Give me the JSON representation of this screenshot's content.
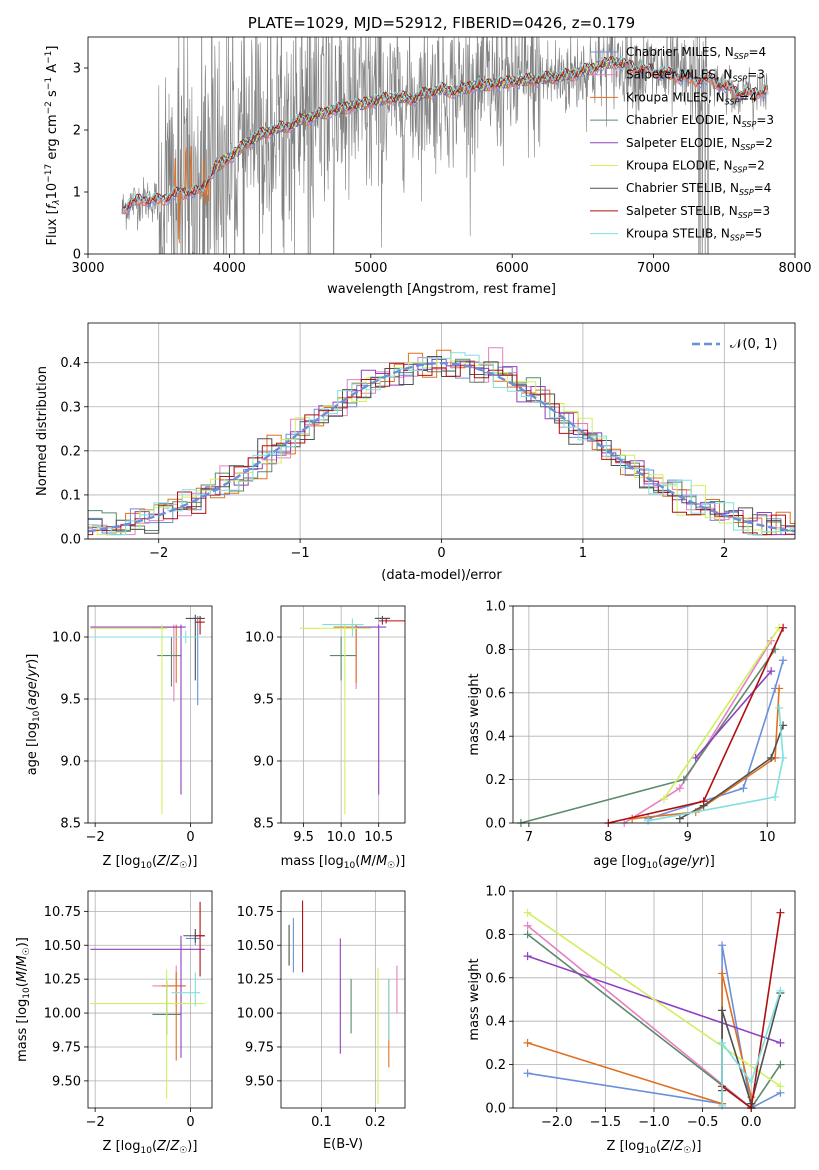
{
  "chart_data": [
    {
      "id": "spectrum",
      "type": "line",
      "title": "PLATE=1029, MJD=52912, FIBERID=0426, z=0.179",
      "xlabel": "wavelength [Angstrom, rest frame]",
      "ylabel": "Flux [f_λ 10^-17 erg cm^-2 s^-1 A^-1]",
      "xlim": [
        3000,
        8000
      ],
      "ylim": [
        0,
        3.5
      ],
      "xticks": [
        "3000",
        "4000",
        "5000",
        "6000",
        "7000",
        "8000"
      ],
      "yticks": [
        "0",
        "1",
        "2",
        "3"
      ],
      "legend_position": "top-right",
      "data_series": {
        "name": "",
        "color": "#808080"
      },
      "model_profile": {
        "x": [
          3240,
          3300,
          3400,
          3500,
          3600,
          3700,
          3800,
          3900,
          4000,
          4100,
          4200,
          4300,
          4400,
          4500,
          4600,
          4700,
          4800,
          4900,
          5000,
          5100,
          5200,
          5300,
          5400,
          5500,
          5600,
          5700,
          5800,
          5900,
          6000,
          6100,
          6200,
          6300,
          6400,
          6500,
          6600,
          6700,
          6800,
          6900,
          7000,
          7100,
          7200,
          7300,
          7400,
          7500,
          7600,
          7700,
          7810
        ],
        "y": [
          0.7,
          0.82,
          0.88,
          0.86,
          0.95,
          1.0,
          1.0,
          1.4,
          1.55,
          1.75,
          1.9,
          2.0,
          2.05,
          2.15,
          2.22,
          2.3,
          2.35,
          2.4,
          2.45,
          2.5,
          2.52,
          2.5,
          2.6,
          2.65,
          2.62,
          2.7,
          2.72,
          2.75,
          2.78,
          2.8,
          2.82,
          2.85,
          2.88,
          2.95,
          3.02,
          3.1,
          3.05,
          2.98,
          2.95,
          2.9,
          2.85,
          2.8,
          2.82,
          2.7,
          2.6,
          2.58,
          2.65
        ]
      },
      "series": [
        {
          "name": "Chabrier MILES, N_SSP=4",
          "label_main": "Chabrier MILES, N",
          "label_sub": "SSP",
          "label_end": "=4",
          "color": "#6a8fdb",
          "xmin": 3250,
          "xmax": 7800
        },
        {
          "name": "Salpeter MILES, N_SSP=3",
          "label_main": "Salpeter MILES, N",
          "label_sub": "SSP",
          "label_end": "=3",
          "color": "#e680c0",
          "xmin": 3250,
          "xmax": 7800
        },
        {
          "name": "Kroupa MILES, N_SSP=4",
          "label_main": "Kroupa MILES, N",
          "label_sub": "SSP",
          "label_end": "=4",
          "color": "#e07020",
          "xmin": 3250,
          "xmax": 7800
        },
        {
          "name": "Chabrier ELODIE, N_SSP=3",
          "label_main": "Chabrier ELODIE, N",
          "label_sub": "SSP",
          "label_end": "=3",
          "color": "#5a8a6a",
          "xmin": 3900,
          "xmax": 6800
        },
        {
          "name": "Salpeter ELODIE, N_SSP=2",
          "label_main": "Salpeter ELODIE, N",
          "label_sub": "SSP",
          "label_end": "=2",
          "color": "#9040c0",
          "xmin": 3900,
          "xmax": 6800
        },
        {
          "name": "Kroupa ELODIE, N_SSP=2",
          "label_main": "Kroupa ELODIE, N",
          "label_sub": "SSP",
          "label_end": "=2",
          "color": "#d0f060",
          "xmin": 3900,
          "xmax": 6800
        },
        {
          "name": "Chabrier STELIB, N_SSP=4",
          "label_main": "Chabrier STELIB, N",
          "label_sub": "SSP",
          "label_end": "=4",
          "color": "#505050",
          "xmin": 3250,
          "xmax": 7800
        },
        {
          "name": "Salpeter STELIB, N_SSP=3",
          "label_main": "Salpeter STELIB, N",
          "label_sub": "SSP",
          "label_end": "=3",
          "color": "#b01010",
          "xmin": 3250,
          "xmax": 7800
        },
        {
          "name": "Kroupa STELIB, N_SSP=5",
          "label_main": "Kroupa STELIB, N",
          "label_sub": "SSP",
          "label_end": "=5",
          "color": "#80e0e0",
          "xmin": 3250,
          "xmax": 7800
        }
      ]
    },
    {
      "id": "residuals",
      "type": "line",
      "xlabel": "(data-model)/error",
      "ylabel": "Normed distribution",
      "xlim": [
        -2.5,
        2.5
      ],
      "ylim": [
        0,
        0.49
      ],
      "xticks": [
        "−2",
        "−1",
        "0",
        "1",
        "2"
      ],
      "yticks": [
        "0.0",
        "0.1",
        "0.2",
        "0.3",
        "0.4"
      ],
      "grid": true,
      "legend_position": "top-right",
      "reference_curve": {
        "name": "𝒩(0, 1)",
        "color": "#6a8fdb",
        "style": "dashed"
      },
      "bin_width": 0.1,
      "series_colors": [
        "#6a8fdb",
        "#e680c0",
        "#e07020",
        "#5a8a6a",
        "#9040c0",
        "#d0f060",
        "#505050",
        "#b01010",
        "#80e0e0"
      ]
    },
    {
      "id": "age_vs_Z",
      "type": "scatter",
      "xlabel": "Z [log10(Z/Z☉)]",
      "ylabel": "age [log10(age/yr)]",
      "xlim": [
        -2.15,
        0.45
      ],
      "ylim": [
        8.5,
        10.25
      ],
      "xticks": [
        "−2",
        "0"
      ],
      "yticks": [
        "8.5",
        "9.0",
        "9.5",
        "10.0"
      ],
      "grid": true,
      "points": [
        {
          "x": 0.15,
          "y": 10.15,
          "xerr": [
            0.1,
            0.1
          ],
          "yerr": [
            0.7,
            0.02
          ],
          "color": "#6a8fdb"
        },
        {
          "x": -0.35,
          "y": 10.08,
          "xerr": [
            0.5,
            0.2
          ],
          "yerr": [
            0.6,
            0.02
          ],
          "color": "#e680c0"
        },
        {
          "x": -0.3,
          "y": 10.08,
          "xerr": [
            0.5,
            0.1
          ],
          "yerr": [
            0.45,
            0.02
          ],
          "color": "#e07020"
        },
        {
          "x": -0.4,
          "y": 9.85,
          "xerr": [
            0.3,
            0.2
          ],
          "yerr": [
            0.25,
            0.15
          ],
          "color": "#5a8a6a"
        },
        {
          "x": -0.2,
          "y": 10.08,
          "xerr": [
            1.9,
            0.1
          ],
          "yerr": [
            1.35,
            0.02
          ],
          "color": "#9040c0"
        },
        {
          "x": -0.6,
          "y": 10.07,
          "xerr": [
            1.5,
            0.1
          ],
          "yerr": [
            1.5,
            0.03
          ],
          "color": "#d0f060"
        },
        {
          "x": 0.1,
          "y": 10.15,
          "xerr": [
            0.2,
            0.2
          ],
          "yerr": [
            0.5,
            0.03
          ],
          "color": "#505050"
        },
        {
          "x": 0.2,
          "y": 10.12,
          "xerr": [
            0.1,
            0.1
          ],
          "yerr": [
            0.1,
            0.05
          ],
          "color": "#b01010"
        },
        {
          "x": -0.1,
          "y": 10.0,
          "xerr": [
            2.0,
            0.4
          ],
          "yerr": [
            0.05,
            0.05
          ],
          "color": "#80e0e0"
        }
      ]
    },
    {
      "id": "age_vs_mass",
      "type": "scatter",
      "xlabel": "mass [log10(M/M☉)]",
      "ylabel": "",
      "xlim": [
        9.2,
        10.85
      ],
      "ylim": [
        8.5,
        10.25
      ],
      "xticks": [
        "9.5",
        "10.0",
        "10.5"
      ],
      "yticks": [
        "8.5",
        "9.0",
        "9.5",
        "10.0"
      ],
      "grid": true,
      "points": [
        {
          "x": 10.55,
          "y": 10.15,
          "xerr": [
            0.1,
            0.1
          ],
          "yerr": [
            0.05,
            0.02
          ],
          "color": "#6a8fdb"
        },
        {
          "x": 10.2,
          "y": 10.08,
          "xerr": [
            0.3,
            0.2
          ],
          "yerr": [
            0.5,
            0.02
          ],
          "color": "#e680c0"
        },
        {
          "x": 10.2,
          "y": 10.08,
          "xerr": [
            0.3,
            0.2
          ],
          "yerr": [
            0.45,
            0.02
          ],
          "color": "#e07020"
        },
        {
          "x": 10.0,
          "y": 9.85,
          "xerr": [
            0.15,
            0.2
          ],
          "yerr": [
            0.2,
            0.15
          ],
          "color": "#5a8a6a"
        },
        {
          "x": 10.5,
          "y": 10.08,
          "xerr": [
            0.3,
            0.1
          ],
          "yerr": [
            1.35,
            0.02
          ],
          "color": "#9040c0"
        },
        {
          "x": 10.05,
          "y": 10.07,
          "xerr": [
            0.6,
            0.35
          ],
          "yerr": [
            1.5,
            0.03
          ],
          "color": "#d0f060"
        },
        {
          "x": 10.55,
          "y": 10.15,
          "xerr": [
            0.1,
            0.1
          ],
          "yerr": [
            0.05,
            0.02
          ],
          "color": "#505050"
        },
        {
          "x": 10.6,
          "y": 10.13,
          "xerr": [
            0.1,
            0.25
          ],
          "yerr": [
            0.02,
            0.02
          ],
          "color": "#b01010"
        },
        {
          "x": 10.15,
          "y": 10.1,
          "xerr": [
            0.4,
            0.15
          ],
          "yerr": [
            0.1,
            0.05
          ],
          "color": "#80e0e0"
        }
      ]
    },
    {
      "id": "weight_vs_age",
      "type": "line",
      "xlabel": "age [log10(age/yr)]",
      "ylabel": "mass weight",
      "xlim": [
        6.8,
        10.35
      ],
      "ylim": [
        0,
        1
      ],
      "xticks": [
        "7",
        "8",
        "9",
        "10"
      ],
      "yticks": [
        "0.0",
        "0.2",
        "0.4",
        "0.6",
        "0.8",
        "1.0"
      ],
      "grid": true,
      "series": [
        {
          "color": "#6a8fdb",
          "x": [
            8.5,
            9.7,
            10.1,
            10.2
          ],
          "y": [
            0.02,
            0.16,
            0.62,
            0.75
          ]
        },
        {
          "color": "#e680c0",
          "x": [
            8.2,
            8.9,
            10.05
          ],
          "y": [
            0.0,
            0.16,
            0.84
          ]
        },
        {
          "color": "#e07020",
          "x": [
            8.3,
            9.1,
            10.1,
            10.15
          ],
          "y": [
            0.02,
            0.05,
            0.3,
            0.62
          ]
        },
        {
          "color": "#5a8a6a",
          "x": [
            6.9,
            8.95,
            10.1
          ],
          "y": [
            0.0,
            0.2,
            0.8
          ]
        },
        {
          "color": "#9040c0",
          "x": [
            9.1,
            10.05
          ],
          "y": [
            0.3,
            0.7
          ]
        },
        {
          "color": "#d0f060",
          "x": [
            8.7,
            10.15
          ],
          "y": [
            0.11,
            0.9
          ]
        },
        {
          "color": "#505050",
          "x": [
            8.9,
            9.2,
            10.05,
            10.2
          ],
          "y": [
            0.02,
            0.08,
            0.3,
            0.45
          ]
        },
        {
          "color": "#b01010",
          "x": [
            8.0,
            9.2,
            10.2
          ],
          "y": [
            0.0,
            0.1,
            0.9
          ]
        },
        {
          "color": "#80e0e0",
          "x": [
            8.5,
            10.1,
            10.2,
            10.15
          ],
          "y": [
            0.01,
            0.12,
            0.3,
            0.53
          ]
        }
      ]
    },
    {
      "id": "mass_vs_Z",
      "type": "scatter",
      "xlabel": "Z [log10(Z/Z☉)]",
      "ylabel": "mass [log10(M/M☉)]",
      "xlim": [
        -2.15,
        0.45
      ],
      "ylim": [
        9.3,
        10.9
      ],
      "xticks": [
        "−2",
        "0"
      ],
      "yticks": [
        "9.50",
        "9.75",
        "10.00",
        "10.25",
        "10.50",
        "10.75"
      ],
      "grid": true,
      "points": [
        {
          "x": 0.1,
          "y": 10.55,
          "xerr": [
            0.2,
            0.1
          ],
          "yerr": [
            0.05,
            0.05
          ],
          "color": "#6a8fdb"
        },
        {
          "x": -0.3,
          "y": 10.2,
          "xerr": [
            0.5,
            0.2
          ],
          "yerr": [
            0.15,
            0.15
          ],
          "color": "#e680c0"
        },
        {
          "x": -0.3,
          "y": 10.2,
          "xerr": [
            0.3,
            0.2
          ],
          "yerr": [
            0.55,
            0.1
          ],
          "color": "#e07020"
        },
        {
          "x": -0.5,
          "y": 9.99,
          "xerr": [
            0.3,
            0.3
          ],
          "yerr": [
            0.15,
            0.25
          ],
          "color": "#5a8a6a"
        },
        {
          "x": -0.2,
          "y": 10.47,
          "xerr": [
            1.9,
            0.5
          ],
          "yerr": [
            0.8,
            0.1
          ],
          "color": "#9040c0"
        },
        {
          "x": -0.5,
          "y": 10.07,
          "xerr": [
            1.6,
            0.8
          ],
          "yerr": [
            0.7,
            0.25
          ],
          "color": "#d0f060"
        },
        {
          "x": 0.1,
          "y": 10.57,
          "xerr": [
            0.25,
            0.2
          ],
          "yerr": [
            0.05,
            0.05
          ],
          "color": "#505050"
        },
        {
          "x": 0.2,
          "y": 10.57,
          "xerr": [
            0.1,
            0.1
          ],
          "yerr": [
            0.3,
            0.25
          ],
          "color": "#b01010"
        },
        {
          "x": 0.1,
          "y": 10.15,
          "xerr": [
            0.5,
            0.1
          ],
          "yerr": [
            0.1,
            0.15
          ],
          "color": "#80e0e0"
        }
      ]
    },
    {
      "id": "mass_vs_ebv",
      "type": "scatter",
      "xlabel": "E(B-V)",
      "ylabel": "",
      "xlim": [
        0.025,
        0.255
      ],
      "ylim": [
        9.3,
        10.9
      ],
      "xticks": [
        "0.1",
        "0.2"
      ],
      "yticks": [
        "9.50",
        "9.75",
        "10.00",
        "10.25",
        "10.50",
        "10.75"
      ],
      "grid": true,
      "points": [
        {
          "x": 0.048,
          "y": 10.5,
          "yerr": [
            0.2,
            0.2
          ],
          "color": "#6a8fdb"
        },
        {
          "x": 0.24,
          "y": 10.2,
          "yerr": [
            0.2,
            0.15
          ],
          "color": "#e680c0"
        },
        {
          "x": 0.225,
          "y": 10.0,
          "yerr": [
            0.4,
            0.25
          ],
          "color": "#e07020"
        },
        {
          "x": 0.155,
          "y": 10.1,
          "yerr": [
            0.25,
            0.15
          ],
          "color": "#5a8a6a"
        },
        {
          "x": 0.135,
          "y": 10.1,
          "yerr": [
            0.4,
            0.45
          ],
          "color": "#9040c0"
        },
        {
          "x": 0.205,
          "y": 9.83,
          "yerr": [
            0.5,
            0.5
          ],
          "color": "#d0f060"
        },
        {
          "x": 0.04,
          "y": 10.5,
          "yerr": [
            0.15,
            0.15
          ],
          "color": "#505050"
        },
        {
          "x": 0.065,
          "y": 10.55,
          "yerr": [
            0.25,
            0.28
          ],
          "color": "#b01010"
        },
        {
          "x": 0.225,
          "y": 10.05,
          "yerr": [
            0.25,
            0.2
          ],
          "color": "#80e0e0"
        }
      ]
    },
    {
      "id": "weight_vs_Z",
      "type": "line",
      "xlabel": "Z [log10(Z/Z☉)]",
      "ylabel": "mass weight",
      "xlim": [
        -2.45,
        0.45
      ],
      "ylim": [
        0,
        1
      ],
      "xticks": [
        "−2.0",
        "−1.5",
        "−1.0",
        "−0.5",
        "0.0"
      ],
      "yticks": [
        "0.0",
        "0.2",
        "0.4",
        "0.6",
        "0.8",
        "1.0"
      ],
      "grid": true,
      "series": [
        {
          "color": "#6a8fdb",
          "x": [
            -2.3,
            -0.3,
            -0.3,
            0.0,
            0.3
          ],
          "y": [
            0.16,
            0.02,
            0.75,
            0.0,
            0.07
          ]
        },
        {
          "color": "#e680c0",
          "x": [
            -2.3,
            0.0
          ],
          "y": [
            0.84,
            0.0
          ]
        },
        {
          "color": "#e07020",
          "x": [
            -2.3,
            -0.3,
            -0.3,
            0.0
          ],
          "y": [
            0.3,
            0.02,
            0.62,
            0.05
          ]
        },
        {
          "color": "#5a8a6a",
          "x": [
            -2.3,
            0.0,
            0.3
          ],
          "y": [
            0.8,
            0.0,
            0.2
          ]
        },
        {
          "color": "#9040c0",
          "x": [
            -2.3,
            0.3
          ],
          "y": [
            0.7,
            0.3
          ]
        },
        {
          "color": "#d0f060",
          "x": [
            -2.3,
            0.3
          ],
          "y": [
            0.9,
            0.1
          ]
        },
        {
          "color": "#505050",
          "x": [
            -0.3,
            -0.3,
            0.0,
            0.3
          ],
          "y": [
            0.08,
            0.45,
            0.02,
            0.53
          ]
        },
        {
          "color": "#b01010",
          "x": [
            -0.3,
            0.0,
            0.3
          ],
          "y": [
            0.1,
            0.0,
            0.9
          ]
        },
        {
          "color": "#80e0e0",
          "x": [
            -0.3,
            -0.3,
            0.0,
            0.3
          ],
          "y": [
            0.01,
            0.3,
            0.12,
            0.54
          ]
        }
      ]
    }
  ]
}
